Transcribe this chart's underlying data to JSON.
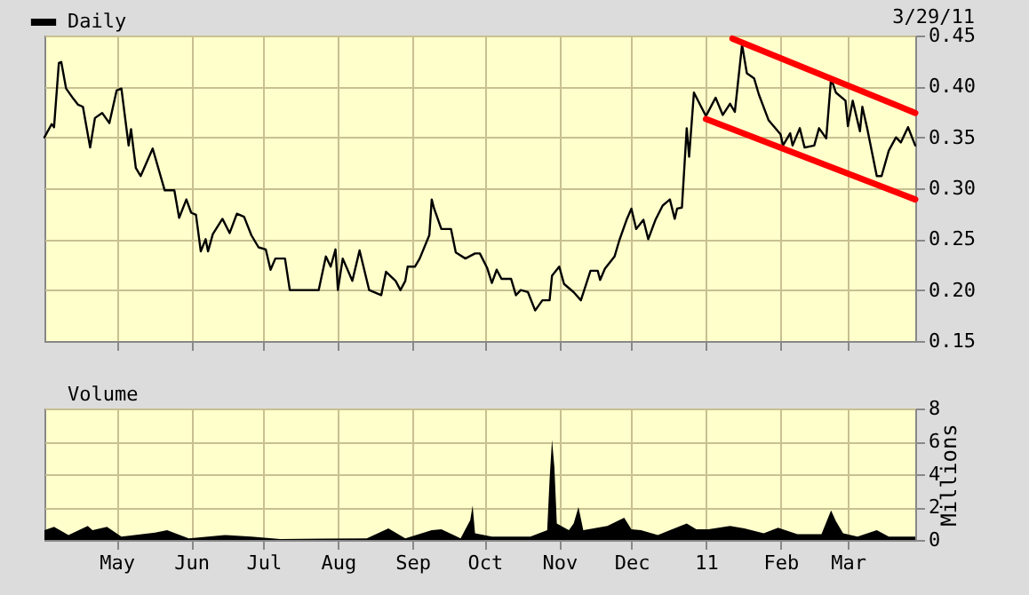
{
  "chart_data": [
    {
      "type": "line",
      "legend": "top left",
      "grid": true,
      "tick_labels": "y",
      "annotations": [
        "3/29/11"
      ],
      "xlim": [
        "2010-04-01",
        "2011-03-29"
      ],
      "xticks": [
        {
          "value": "2010-05-01",
          "label": null
        },
        {
          "value": "2010-06-01",
          "label": null
        },
        {
          "value": "2010-07-01",
          "label": null
        },
        {
          "value": "2010-08-01",
          "label": null
        },
        {
          "value": "2010-09-01",
          "label": null
        },
        {
          "value": "2010-10-01",
          "label": null
        },
        {
          "value": "2010-11-01",
          "label": null
        },
        {
          "value": "2010-12-01",
          "label": null
        },
        {
          "value": "2011-01-01",
          "label": null
        },
        {
          "value": "2011-02-01",
          "label": null
        },
        {
          "value": "2011-03-01",
          "label": null
        }
      ],
      "ylim": [
        0.15,
        0.45
      ],
      "yticks": [
        {
          "value": 0.15,
          "label": "0.15"
        },
        {
          "value": 0.2,
          "label": "0.20"
        },
        {
          "value": 0.25,
          "label": "0.25"
        },
        {
          "value": 0.3,
          "label": "0.30"
        },
        {
          "value": 0.35,
          "label": "0.35"
        },
        {
          "value": 0.4,
          "label": "0.40"
        },
        {
          "value": 0.45,
          "label": "0.45"
        }
      ],
      "series": [
        {
          "name": "Daily",
          "color": "#000000",
          "x": [
            "2010-04-01",
            "2010-04-04",
            "2010-04-05",
            "2010-04-07",
            "2010-04-08",
            "2010-04-10",
            "2010-04-13",
            "2010-04-15",
            "2010-04-17",
            "2010-04-20",
            "2010-04-22",
            "2010-04-25",
            "2010-04-28",
            "2010-05-01",
            "2010-05-03",
            "2010-05-06",
            "2010-05-07",
            "2010-05-09",
            "2010-05-11",
            "2010-05-16",
            "2010-05-21",
            "2010-05-25",
            "2010-05-27",
            "2010-05-30",
            "2010-06-01",
            "2010-06-03",
            "2010-06-05",
            "2010-06-07",
            "2010-06-08",
            "2010-06-10",
            "2010-06-14",
            "2010-06-17",
            "2010-06-20",
            "2010-06-23",
            "2010-06-26",
            "2010-06-29",
            "2010-07-02",
            "2010-07-04",
            "2010-07-06",
            "2010-07-10",
            "2010-07-12",
            "2010-07-24",
            "2010-07-27",
            "2010-07-29",
            "2010-07-31",
            "2010-08-01",
            "2010-08-03",
            "2010-08-07",
            "2010-08-10",
            "2010-08-14",
            "2010-08-19",
            "2010-08-21",
            "2010-08-25",
            "2010-08-27",
            "2010-08-29",
            "2010-08-30",
            "2010-09-02",
            "2010-09-04",
            "2010-09-08",
            "2010-09-09",
            "2010-09-10",
            "2010-09-13",
            "2010-09-17",
            "2010-09-19",
            "2010-09-23",
            "2010-09-27",
            "2010-09-29",
            "2010-10-02",
            "2010-10-04",
            "2010-10-06",
            "2010-10-08",
            "2010-10-12",
            "2010-10-14",
            "2010-10-16",
            "2010-10-19",
            "2010-10-22",
            "2010-10-25",
            "2010-10-28",
            "2010-10-29",
            "2010-11-01",
            "2010-11-03",
            "2010-11-07",
            "2010-11-10",
            "2010-11-14",
            "2010-11-17",
            "2010-11-18",
            "2010-11-20",
            "2010-11-24",
            "2010-11-26",
            "2010-11-29",
            "2010-12-01",
            "2010-12-03",
            "2010-12-06",
            "2010-12-08",
            "2010-12-11",
            "2010-12-14",
            "2010-12-17",
            "2010-12-19",
            "2010-12-20",
            "2010-12-22",
            "2010-12-24",
            "2010-12-25",
            "2010-12-27",
            "2010-12-30",
            "2011-01-01",
            "2011-01-05",
            "2011-01-08",
            "2011-01-11",
            "2011-01-13",
            "2011-01-16",
            "2011-01-18",
            "2011-01-21",
            "2011-01-23",
            "2011-01-27",
            "2011-02-01",
            "2011-02-02",
            "2011-02-05",
            "2011-02-06",
            "2011-02-09",
            "2011-02-11",
            "2011-02-15",
            "2011-02-17",
            "2011-02-20",
            "2011-02-22",
            "2011-02-24",
            "2011-02-28",
            "2011-03-01",
            "2011-03-03",
            "2011-03-06",
            "2011-03-07",
            "2011-03-09",
            "2011-03-13",
            "2011-03-15",
            "2011-03-18",
            "2011-03-21",
            "2011-03-23",
            "2011-03-26",
            "2011-03-29"
          ],
          "values": [
            0.35,
            0.363,
            0.36,
            0.423,
            0.424,
            0.398,
            0.388,
            0.382,
            0.38,
            0.34,
            0.369,
            0.374,
            0.364,
            0.396,
            0.398,
            0.342,
            0.358,
            0.32,
            0.312,
            0.339,
            0.298,
            0.298,
            0.271,
            0.289,
            0.276,
            0.274,
            0.238,
            0.25,
            0.238,
            0.255,
            0.27,
            0.256,
            0.275,
            0.272,
            0.254,
            0.242,
            0.24,
            0.22,
            0.231,
            0.231,
            0.2,
            0.2,
            0.233,
            0.223,
            0.24,
            0.2,
            0.231,
            0.209,
            0.239,
            0.2,
            0.195,
            0.218,
            0.209,
            0.2,
            0.209,
            0.223,
            0.223,
            0.231,
            0.254,
            0.289,
            0.28,
            0.26,
            0.26,
            0.237,
            0.231,
            0.236,
            0.236,
            0.222,
            0.207,
            0.22,
            0.211,
            0.211,
            0.195,
            0.2,
            0.198,
            0.18,
            0.19,
            0.19,
            0.214,
            0.223,
            0.206,
            0.198,
            0.19,
            0.219,
            0.219,
            0.21,
            0.221,
            0.233,
            0.249,
            0.269,
            0.28,
            0.26,
            0.269,
            0.25,
            0.269,
            0.283,
            0.289,
            0.27,
            0.28,
            0.281,
            0.359,
            0.331,
            0.394,
            0.38,
            0.371,
            0.389,
            0.372,
            0.383,
            0.375,
            0.441,
            0.413,
            0.408,
            0.392,
            0.367,
            0.353,
            0.342,
            0.354,
            0.342,
            0.359,
            0.34,
            0.342,
            0.359,
            0.349,
            0.408,
            0.394,
            0.386,
            0.361,
            0.386,
            0.356,
            0.38,
            0.359,
            0.312,
            0.312,
            0.337,
            0.35,
            0.345,
            0.36,
            0.342
          ]
        },
        {
          "color": "#ff0000",
          "x": [
            "2011-01-12",
            "2011-03-29"
          ],
          "values": [
            0.447,
            0.374
          ]
        },
        {
          "color": "#ff0000",
          "x": [
            "2011-01-01",
            "2011-03-29"
          ],
          "values": [
            0.368,
            0.289
          ]
        }
      ]
    },
    {
      "type": "area",
      "legend": "top left",
      "grid": true,
      "ylabel": "Millions",
      "xlim": [
        "2010-04-01",
        "2011-03-29"
      ],
      "xticks": [
        {
          "value": "2010-05-01",
          "label": "May"
        },
        {
          "value": "2010-06-01",
          "label": "Jun"
        },
        {
          "value": "2010-07-01",
          "label": "Jul"
        },
        {
          "value": "2010-08-01",
          "label": "Aug"
        },
        {
          "value": "2010-09-01",
          "label": "Sep"
        },
        {
          "value": "2010-10-01",
          "label": "Oct"
        },
        {
          "value": "2010-11-01",
          "label": "Nov"
        },
        {
          "value": "2010-12-01",
          "label": "Dec"
        },
        {
          "value": "2011-01-01",
          "label": "11"
        },
        {
          "value": "2011-02-01",
          "label": "Feb"
        },
        {
          "value": "2011-03-01",
          "label": "Mar"
        }
      ],
      "ylim": [
        0,
        8
      ],
      "yticks": [
        0,
        2,
        4,
        6,
        8
      ],
      "series": [
        {
          "name": "Volume",
          "color": "#000000",
          "x": [
            "2010-04-01",
            "2010-04-05",
            "2010-04-11",
            "2010-04-19",
            "2010-04-21",
            "2010-04-27",
            "2010-05-03",
            "2010-05-17",
            "2010-05-22",
            "2010-05-31",
            "2010-06-15",
            "2010-06-26",
            "2010-07-08",
            "2010-07-26",
            "2010-08-13",
            "2010-08-22",
            "2010-08-29",
            "2010-09-09",
            "2010-09-13",
            "2010-09-21",
            "2010-09-25",
            "2010-09-26",
            "2010-09-27",
            "2010-10-04",
            "2010-10-20",
            "2010-10-27",
            "2010-10-28",
            "2010-10-29",
            "2010-10-30",
            "2010-10-31",
            "2010-11-05",
            "2010-11-07",
            "2010-11-09",
            "2010-11-11",
            "2010-11-21",
            "2010-11-28",
            "2010-12-01",
            "2010-12-05",
            "2010-12-12",
            "2010-12-17",
            "2010-12-24",
            "2010-12-28",
            "2011-01-02",
            "2011-01-11",
            "2011-01-17",
            "2011-01-25",
            "2011-01-31",
            "2011-02-08",
            "2011-02-18",
            "2011-02-22",
            "2011-02-24",
            "2011-02-27",
            "2011-03-05",
            "2011-03-13",
            "2011-03-18",
            "2011-03-29"
          ],
          "values": [
            0.6,
            0.8,
            0.3,
            0.85,
            0.6,
            0.8,
            0.2,
            0.45,
            0.6,
            0.1,
            0.3,
            0.2,
            0.05,
            0.08,
            0.1,
            0.7,
            0.1,
            0.6,
            0.65,
            0.1,
            1.2,
            2.1,
            0.4,
            0.2,
            0.2,
            0.6,
            3.7,
            6.1,
            4.4,
            1.0,
            0.6,
            1.0,
            2.0,
            0.6,
            0.85,
            1.35,
            0.65,
            0.6,
            0.3,
            0.6,
            1.0,
            0.65,
            0.65,
            0.85,
            0.7,
            0.4,
            0.75,
            0.35,
            0.35,
            1.8,
            1.15,
            0.4,
            0.2,
            0.6,
            0.2,
            0.2
          ]
        }
      ]
    }
  ]
}
